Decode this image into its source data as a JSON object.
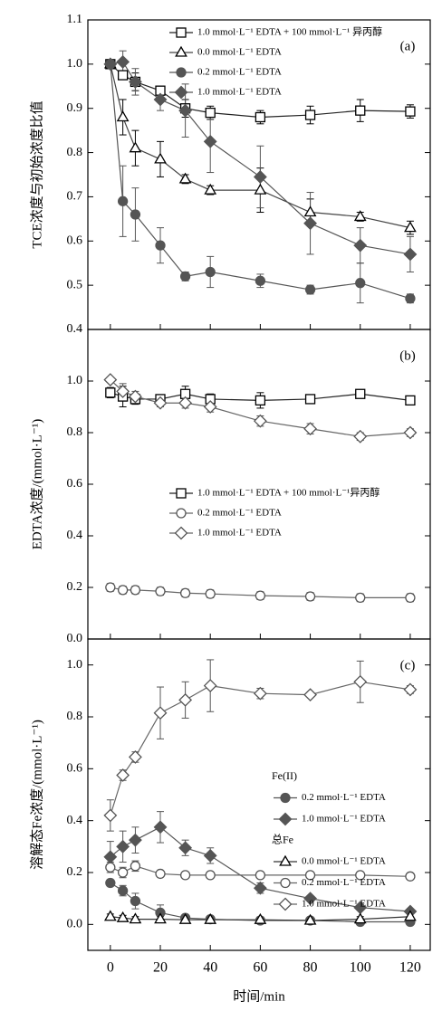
{
  "chart_data": [
    {
      "type": "line",
      "panel_label": "(a)",
      "ylabel": "TCE浓度与初始浓度比值",
      "x": [
        0,
        5,
        10,
        20,
        30,
        40,
        60,
        80,
        100,
        120
      ],
      "xlim": [
        -9,
        128
      ],
      "xticks": [
        0,
        20,
        40,
        60,
        80,
        100,
        120
      ],
      "ylim": [
        0.4,
        1.1
      ],
      "yticks": [
        0.4,
        0.5,
        0.6,
        0.7,
        0.8,
        0.9,
        {
          "value": 1,
          "label": "1.0"
        },
        1.1
      ],
      "series": [
        {
          "name": "1.0 mmol·L⁻¹ EDTA + 100 mmol·L⁻¹ 异丙醇",
          "marker": "square",
          "filled": false,
          "color": "#000",
          "line_color": "#222",
          "values": [
            1.0,
            0.975,
            0.96,
            0.94,
            0.9,
            0.89,
            0.88,
            0.885,
            0.895,
            0.893
          ],
          "errors": [
            0.01,
            0.01,
            0.02,
            0.01,
            0.02,
            0.015,
            0.015,
            0.02,
            0.025,
            0.015
          ]
        },
        {
          "name": "0.0 mmol·L⁻¹ EDTA",
          "marker": "triangle",
          "filled": false,
          "color": "#000",
          "line_color": "#444",
          "values": [
            1.0,
            0.88,
            0.81,
            0.785,
            0.74,
            0.715,
            0.715,
            0.665,
            0.655,
            0.63
          ],
          "errors": [
            0.01,
            0.04,
            0.04,
            0.04,
            0.01,
            0.01,
            0.05,
            0.03,
            0.01,
            0.015
          ]
        },
        {
          "name": "0.2 mmol·L⁻¹ EDTA",
          "marker": "circle",
          "filled": true,
          "color": "#555",
          "line_color": "#555",
          "values": [
            1.0,
            0.69,
            0.66,
            0.59,
            0.52,
            0.53,
            0.51,
            0.49,
            0.505,
            0.47
          ],
          "errors": [
            0.01,
            0.08,
            0.06,
            0.04,
            0.01,
            0.035,
            0.015,
            0.01,
            0.045,
            0.01
          ]
        },
        {
          "name": "1.0 mmol·L⁻¹ EDTA",
          "marker": "diamond",
          "filled": true,
          "color": "#555",
          "line_color": "#555",
          "values": [
            1.0,
            1.005,
            0.96,
            0.92,
            0.895,
            0.825,
            0.745,
            0.64,
            0.59,
            0.57
          ],
          "errors": [
            0.01,
            0.025,
            0.03,
            0.025,
            0.06,
            0.07,
            0.07,
            0.07,
            0.04,
            0.04
          ]
        }
      ]
    },
    {
      "type": "line",
      "panel_label": "(b)",
      "ylabel": "EDTA浓度/(mmol·L⁻¹)",
      "x": [
        0,
        5,
        10,
        20,
        30,
        40,
        60,
        80,
        100,
        120
      ],
      "xlim": [
        -9,
        128
      ],
      "xticks": [
        0,
        20,
        40,
        60,
        80,
        100,
        120
      ],
      "ylim": [
        0,
        1.2
      ],
      "yticks": [
        {
          "value": 0,
          "label": "0.0"
        },
        0.2,
        0.4,
        0.6,
        0.8,
        {
          "value": 1,
          "label": "1.0"
        }
      ],
      "series": [
        {
          "name": "1.0 mmol·L⁻¹ EDTA + 100 mmol·L⁻¹异丙醇",
          "marker": "square",
          "filled": false,
          "color": "#000",
          "line_color": "#222",
          "values": [
            0.955,
            0.94,
            0.93,
            0.93,
            0.95,
            0.93,
            0.925,
            0.93,
            0.95,
            0.925
          ],
          "errors": [
            0.02,
            0.04,
            0.02,
            0.01,
            0.03,
            0.02,
            0.03,
            0.01,
            0.015,
            0.015
          ]
        },
        {
          "name": "0.2 mmol·L⁻¹ EDTA",
          "marker": "circle",
          "filled": false,
          "color": "#555",
          "line_color": "#666",
          "values": [
            0.2,
            0.19,
            0.19,
            0.185,
            0.178,
            0.175,
            0.168,
            0.165,
            0.16,
            0.16
          ],
          "errors": [
            0.015,
            0.015,
            0.015,
            0.015,
            0.015,
            0.015,
            0.015,
            0.015,
            0.015,
            0.015
          ]
        },
        {
          "name": "1.0 mmol·L⁻¹ EDTA",
          "marker": "diamond",
          "filled": false,
          "color": "#555",
          "line_color": "#666",
          "values": [
            1.005,
            0.96,
            0.94,
            0.915,
            0.915,
            0.9,
            0.845,
            0.815,
            0.785,
            0.8
          ],
          "errors": [
            0.01,
            0.03,
            0.02,
            0.015,
            0.02,
            0.02,
            0.02,
            0.02,
            0.015,
            0.015
          ]
        }
      ]
    },
    {
      "type": "line",
      "panel_label": "(c)",
      "ylabel": "溶解态Fe浓度/(mmol·L⁻¹)",
      "xlabel": "时间/min",
      "show_xtick_labels": true,
      "x": [
        0,
        5,
        10,
        20,
        30,
        40,
        60,
        80,
        100,
        120
      ],
      "xlim": [
        -9,
        128
      ],
      "xticks": [
        0,
        20,
        40,
        60,
        80,
        100,
        120
      ],
      "ylim": [
        -0.1,
        1.1
      ],
      "yticks": [
        {
          "value": 0,
          "label": "0.0"
        },
        0.2,
        0.4,
        0.6,
        0.8,
        {
          "value": 1,
          "label": "1.0"
        }
      ],
      "legend_groups": [
        {
          "title": "Fe(II)",
          "series": [
            {
              "name": "0.2 mmol·L⁻¹ EDTA",
              "marker": "circle",
              "filled": true,
              "color": "#555",
              "line_color": "#555",
              "values": [
                0.16,
                0.13,
                0.09,
                0.045,
                0.025,
                0.02,
                0.015,
                0.015,
                0.01,
                0.01
              ],
              "errors": [
                0.01,
                0.02,
                0.03,
                0.03,
                0.01,
                0.01,
                0.01,
                0.01,
                0.01,
                0.01
              ]
            },
            {
              "name": "1.0 mmol·L⁻¹ EDTA",
              "marker": "diamond",
              "filled": true,
              "color": "#555",
              "line_color": "#555",
              "values": [
                0.26,
                0.3,
                0.325,
                0.375,
                0.295,
                0.265,
                0.14,
                0.1,
                0.065,
                0.05
              ],
              "errors": [
                0.06,
                0.06,
                0.05,
                0.06,
                0.03,
                0.03,
                0.02,
                0.01,
                0.01,
                0.01
              ]
            }
          ]
        },
        {
          "title": "总Fe",
          "series": [
            {
              "name": "0.0 mmol·L⁻¹ EDTA",
              "marker": "triangle",
              "filled": false,
              "color": "#000",
              "line_color": "#333",
              "values": [
                0.03,
                0.025,
                0.02,
                0.02,
                0.018,
                0.018,
                0.018,
                0.015,
                0.02,
                0.03
              ],
              "errors": [
                0.01,
                0.01,
                0.01,
                0.01,
                0.01,
                0.01,
                0.01,
                0.01,
                0.01,
                0.01
              ]
            },
            {
              "name": "0.2 mmol·L⁻¹ EDTA",
              "marker": "circle",
              "filled": false,
              "color": "#555",
              "line_color": "#666",
              "values": [
                0.22,
                0.2,
                0.225,
                0.195,
                0.19,
                0.19,
                0.19,
                0.19,
                0.19,
                0.185
              ],
              "errors": [
                0.02,
                0.02,
                0.02,
                0.01,
                0.01,
                0.01,
                0.01,
                0.01,
                0.01,
                0.01
              ]
            },
            {
              "name": "1.0 mmol·L⁻¹ EDTA",
              "marker": "diamond",
              "filled": false,
              "color": "#555",
              "line_color": "#666",
              "values": [
                0.42,
                0.575,
                0.645,
                0.815,
                0.865,
                0.92,
                0.89,
                0.885,
                0.935,
                0.905
              ],
              "errors": [
                0.06,
                0.02,
                0.02,
                0.1,
                0.07,
                0.1,
                0.02,
                0.01,
                0.08,
                0.015
              ]
            }
          ]
        }
      ]
    }
  ]
}
